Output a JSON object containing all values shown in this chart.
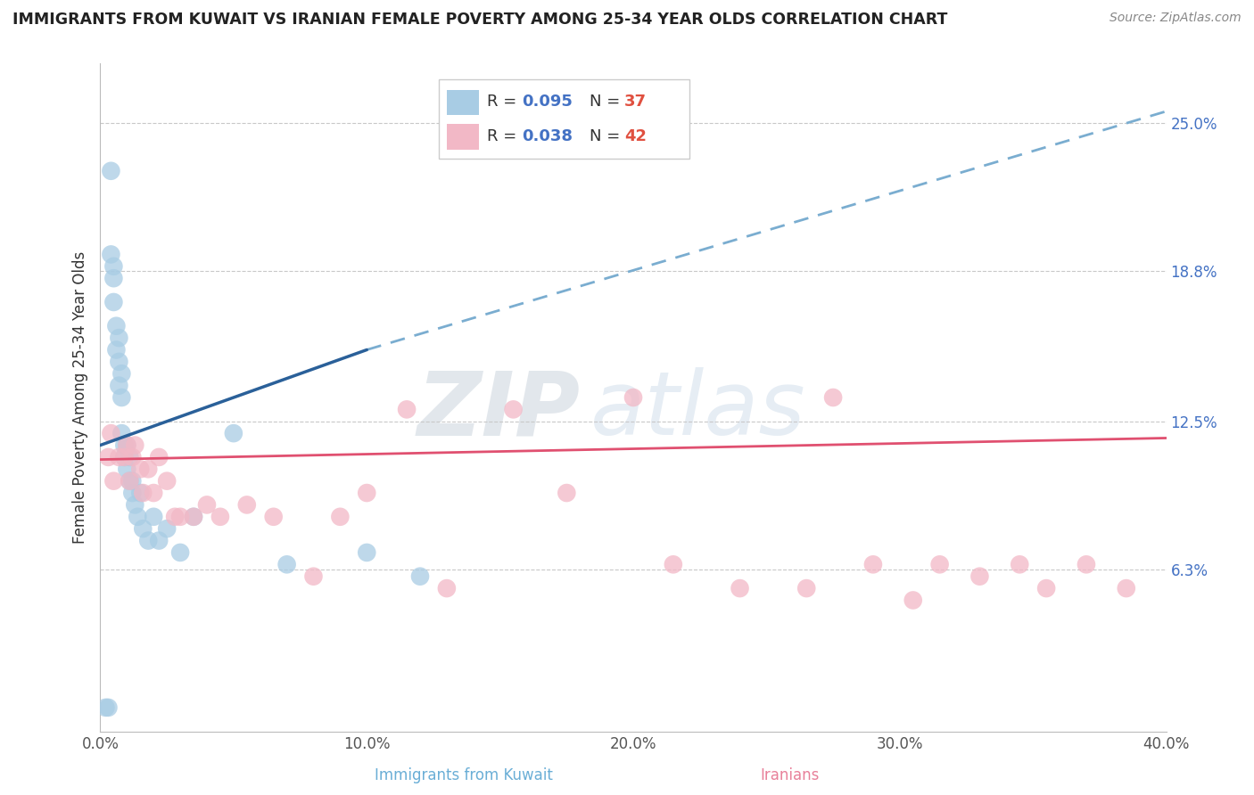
{
  "title": "IMMIGRANTS FROM KUWAIT VS IRANIAN FEMALE POVERTY AMONG 25-34 YEAR OLDS CORRELATION CHART",
  "source": "Source: ZipAtlas.com",
  "xlabel_left": "Immigrants from Kuwait",
  "xlabel_right": "Iranians",
  "ylabel": "Female Poverty Among 25-34 Year Olds",
  "xlim": [
    0.0,
    0.4
  ],
  "ylim": [
    -0.005,
    0.275
  ],
  "right_yticks": [
    0.063,
    0.125,
    0.188,
    0.25
  ],
  "right_yticklabels": [
    "6.3%",
    "12.5%",
    "18.8%",
    "25.0%"
  ],
  "xticks": [
    0.0,
    0.1,
    0.2,
    0.3,
    0.4
  ],
  "xticklabels": [
    "0.0%",
    "10.0%",
    "20.0%",
    "30.0%",
    "40.0%"
  ],
  "blue_color": "#a8cce4",
  "pink_color": "#f2b8c6",
  "blue_line_color": "#2a6099",
  "pink_line_color": "#e05070",
  "dashed_line_color": "#7aadd0",
  "watermark_zip": "ZIP",
  "watermark_atlas": "atlas",
  "blue_x": [
    0.002,
    0.003,
    0.004,
    0.004,
    0.005,
    0.005,
    0.005,
    0.006,
    0.006,
    0.007,
    0.007,
    0.007,
    0.008,
    0.008,
    0.008,
    0.009,
    0.009,
    0.01,
    0.01,
    0.011,
    0.011,
    0.012,
    0.012,
    0.013,
    0.014,
    0.015,
    0.016,
    0.018,
    0.02,
    0.022,
    0.025,
    0.03,
    0.035,
    0.05,
    0.07,
    0.1,
    0.12
  ],
  "blue_y": [
    0.005,
    0.005,
    0.23,
    0.195,
    0.19,
    0.185,
    0.175,
    0.165,
    0.155,
    0.16,
    0.15,
    0.14,
    0.135,
    0.145,
    0.12,
    0.115,
    0.11,
    0.105,
    0.115,
    0.1,
    0.11,
    0.095,
    0.1,
    0.09,
    0.085,
    0.095,
    0.08,
    0.075,
    0.085,
    0.075,
    0.08,
    0.07,
    0.085,
    0.12,
    0.065,
    0.07,
    0.06
  ],
  "pink_x": [
    0.003,
    0.004,
    0.005,
    0.007,
    0.009,
    0.01,
    0.011,
    0.012,
    0.013,
    0.015,
    0.016,
    0.018,
    0.02,
    0.022,
    0.025,
    0.028,
    0.03,
    0.035,
    0.04,
    0.045,
    0.055,
    0.065,
    0.08,
    0.09,
    0.1,
    0.115,
    0.13,
    0.155,
    0.175,
    0.2,
    0.215,
    0.24,
    0.265,
    0.275,
    0.29,
    0.305,
    0.315,
    0.33,
    0.345,
    0.355,
    0.37,
    0.385
  ],
  "pink_y": [
    0.11,
    0.12,
    0.1,
    0.11,
    0.11,
    0.115,
    0.1,
    0.11,
    0.115,
    0.105,
    0.095,
    0.105,
    0.095,
    0.11,
    0.1,
    0.085,
    0.085,
    0.085,
    0.09,
    0.085,
    0.09,
    0.085,
    0.06,
    0.085,
    0.095,
    0.13,
    0.055,
    0.13,
    0.095,
    0.135,
    0.065,
    0.055,
    0.055,
    0.135,
    0.065,
    0.05,
    0.065,
    0.06,
    0.065,
    0.055,
    0.065,
    0.055
  ],
  "blue_line_x0": 0.0,
  "blue_line_y0": 0.115,
  "blue_line_x1": 0.1,
  "blue_line_y1": 0.155,
  "dashed_line_x0": 0.1,
  "dashed_line_y0": 0.155,
  "dashed_line_x1": 0.4,
  "dashed_line_y1": 0.255,
  "pink_line_x0": 0.0,
  "pink_line_y0": 0.109,
  "pink_line_x1": 0.4,
  "pink_line_y1": 0.118
}
